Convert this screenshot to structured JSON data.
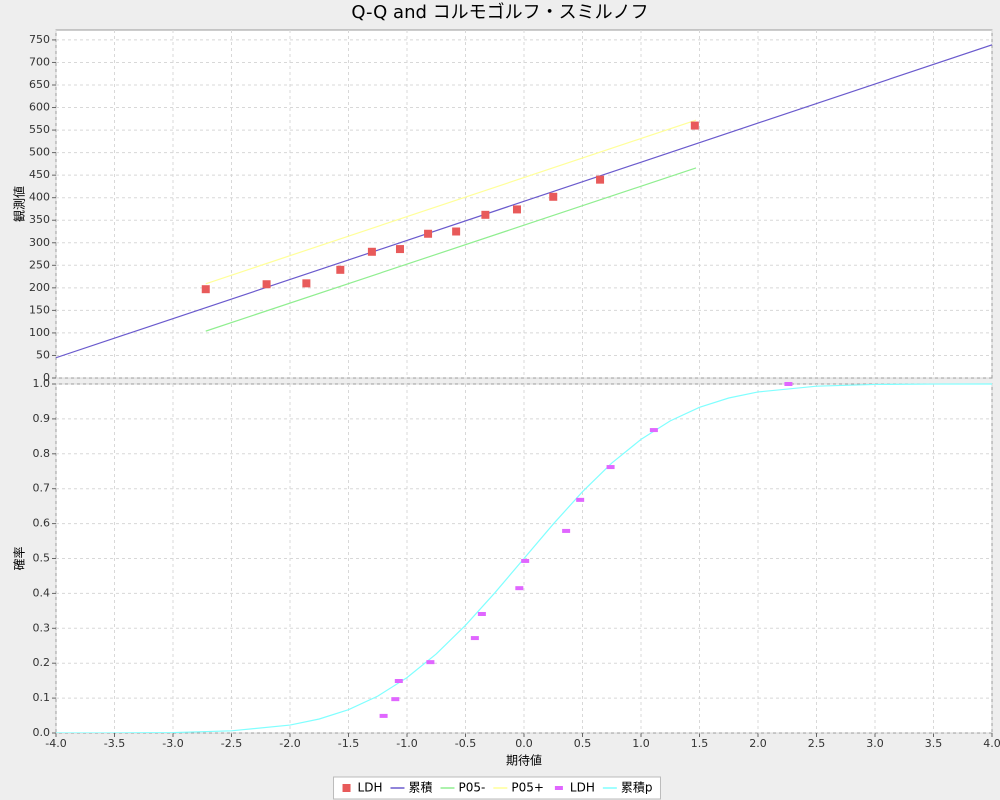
{
  "chart_data": [
    {
      "type": "scatter",
      "title": "Q-Q and コルモゴルフ・スミルノフ",
      "ylabel": "観測値",
      "xlim": [
        -4,
        4
      ],
      "ylim": [
        0,
        772
      ],
      "grid": true,
      "xticks": [
        {
          "value": -4,
          "label": "-4.0"
        },
        -3.5,
        {
          "value": -3,
          "label": "-3.0"
        },
        -2.5,
        {
          "value": -2,
          "label": "-2.0"
        },
        -1.5,
        {
          "value": -1,
          "label": "-1.0"
        },
        -0.5,
        {
          "value": 0,
          "label": "0.0"
        },
        0.5,
        {
          "value": 1,
          "label": "1.0"
        },
        1.5,
        {
          "value": 2,
          "label": "2.0"
        },
        2.5,
        {
          "value": 3,
          "label": "3.0"
        },
        3.5,
        {
          "value": 4,
          "label": "4.0"
        }
      ],
      "yticks": [
        0,
        50,
        100,
        150,
        200,
        250,
        300,
        350,
        400,
        450,
        500,
        550,
        600,
        650,
        700,
        750
      ],
      "series": [
        {
          "name": "LDH",
          "type": "scatter",
          "color": "#e85a5a",
          "x": [
            -2.72,
            -2.2,
            -1.86,
            -1.57,
            -1.3,
            -1.06,
            -0.82,
            -0.58,
            -0.33,
            -0.06,
            0.25,
            0.65,
            1.46
          ],
          "values": [
            197,
            208,
            210,
            240,
            280,
            286,
            320,
            325,
            362,
            374,
            402,
            440,
            560
          ]
        },
        {
          "name": "累積",
          "type": "line",
          "color": "#6a5acd",
          "x": [
            -4,
            4
          ],
          "values": [
            45,
            739
          ]
        },
        {
          "name": "P05-",
          "type": "line",
          "color": "#90ee90",
          "x": [
            -2.72,
            1.47
          ],
          "values": [
            104,
            466
          ]
        },
        {
          "name": "P05+",
          "type": "line",
          "color": "#ffff99",
          "x": [
            -2.72,
            1.47
          ],
          "values": [
            209,
            572
          ]
        }
      ]
    },
    {
      "type": "scatter",
      "xlabel": "期待値",
      "ylabel": "確率",
      "xlim": [
        -4,
        4
      ],
      "ylim": [
        0,
        1
      ],
      "grid": true,
      "xticks": [
        {
          "value": -4,
          "label": "-4.0"
        },
        -3.5,
        {
          "value": -3,
          "label": "-3.0"
        },
        -2.5,
        {
          "value": -2,
          "label": "-2.0"
        },
        -1.5,
        {
          "value": -1,
          "label": "-1.0"
        },
        -0.5,
        {
          "value": 0,
          "label": "0.0"
        },
        0.5,
        {
          "value": 1,
          "label": "1.0"
        },
        1.5,
        {
          "value": 2,
          "label": "2.0"
        },
        2.5,
        {
          "value": 3,
          "label": "3.0"
        },
        3.5,
        {
          "value": 4,
          "label": "4.0"
        }
      ],
      "yticks": [
        {
          "value": 0,
          "label": "0.0"
        },
        0.1,
        0.2,
        0.3,
        0.4,
        0.5,
        0.6,
        0.7,
        0.8,
        0.9,
        {
          "value": 1,
          "label": "1.0"
        }
      ],
      "series": [
        {
          "name": "LDH",
          "type": "scatter",
          "color": "#e066ff",
          "x": [
            -1.2,
            -1.1,
            -1.07,
            -0.8,
            -0.42,
            -0.36,
            -0.04,
            0.01,
            0.36,
            0.48,
            0.74,
            1.11,
            2.26
          ],
          "values": [
            0.049,
            0.097,
            0.149,
            0.203,
            0.272,
            0.341,
            0.415,
            0.493,
            0.579,
            0.668,
            0.762,
            0.868,
            1.0
          ]
        },
        {
          "name": "累積p",
          "type": "line",
          "color": "#80ffff",
          "x": [
            -4,
            -3.5,
            -3,
            -2.5,
            -2,
            -1.75,
            -1.5,
            -1.25,
            -1,
            -0.75,
            -0.5,
            -0.25,
            0,
            0.25,
            0.5,
            0.75,
            1,
            1.25,
            1.5,
            1.75,
            2,
            2.5,
            3,
            3.5,
            4
          ],
          "values": [
            0.0,
            0.0002,
            0.0013,
            0.0062,
            0.0228,
            0.0401,
            0.0668,
            0.1056,
            0.1587,
            0.2266,
            0.3085,
            0.4013,
            0.5,
            0.5987,
            0.6915,
            0.7734,
            0.8413,
            0.8944,
            0.9332,
            0.9599,
            0.9772,
            0.9938,
            0.9987,
            0.9998,
            1.0
          ]
        }
      ]
    }
  ]
}
